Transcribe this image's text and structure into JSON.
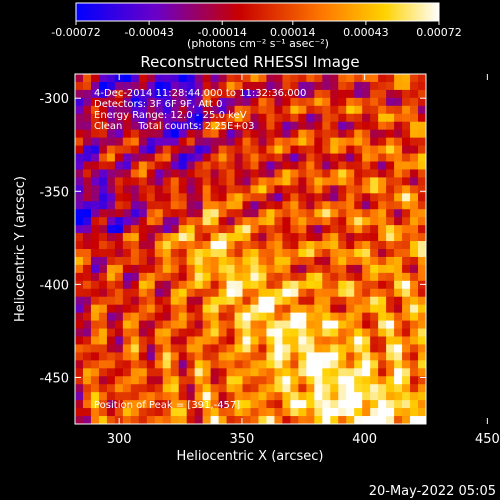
{
  "chart_data": {
    "type": "heatmap",
    "title": "Reconstructed RHESSI Image",
    "xlabel": "Heliocentric X (arcsec)",
    "ylabel": "Heliocentric Y (arcsec)",
    "xlim": [
      282,
      425
    ],
    "ylim": [
      -475,
      -287
    ],
    "xticks": [
      "300",
      "350",
      "400",
      "450"
    ],
    "xtick_values": [
      300,
      350,
      400,
      450
    ],
    "yticks": [
      "-300",
      "-350",
      "-400",
      "-450"
    ],
    "ytick_values": [
      -300,
      -350,
      -400,
      -450
    ],
    "colorbar": {
      "range": [
        -0.00072,
        0.00072
      ],
      "ticks": [
        "-0.00072",
        "-0.00043",
        "-0.00014",
        "0.00014",
        "0.00043",
        "0.00072"
      ],
      "tick_values": [
        -0.00072,
        -0.00043,
        -0.00014,
        0.00014,
        0.00043,
        0.00072
      ],
      "unit_label": "(photons cm⁻² s⁻¹ asec⁻²)",
      "colors": [
        "#0000ff",
        "#6a00c8",
        "#c80000",
        "#ff7800",
        "#ffd200",
        "#ffffff"
      ]
    },
    "annotations": {
      "time_range": "4-Dec-2014 11:28:44.000 to 11:32:36.000",
      "detectors": "Detectors: 3F 6F 9F, Att 0",
      "energy": "Energy Range: 12.0 - 25.0 keV",
      "method": "Clean     Total counts: 2.25E+03",
      "peak": "Position of Peak = [391,-457]"
    },
    "peak": {
      "x": 391,
      "y": -457
    }
  },
  "footer": {
    "timestamp": "20-May-2022 05:05"
  }
}
